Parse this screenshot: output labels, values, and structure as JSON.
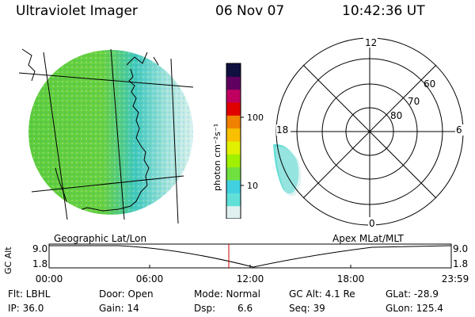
{
  "header": {
    "instrument": "Ultraviolet Imager",
    "date": "06 Nov 07",
    "time": "10:42:36 UT"
  },
  "geo_panel": {
    "title": "Geographic Lat/Lon"
  },
  "apex_panel": {
    "title": "Apex MLat/MLT",
    "lat_labels": [
      "60",
      "70",
      "80"
    ],
    "mlt_labels": [
      "12",
      "18",
      "6",
      "0"
    ]
  },
  "color_scale": {
    "unit_label": "photon cm⁻²s⁻¹",
    "tick_labels": [
      "100",
      "10"
    ],
    "colors": [
      "#e0f0f0",
      "#60e0d8",
      "#40d0e0",
      "#70e040",
      "#a0f000",
      "#e0f000",
      "#f8c000",
      "#f08000",
      "#e00000",
      "#c00060",
      "#600060",
      "#101040"
    ]
  },
  "altitude_plot": {
    "axis_title": "GC Alt",
    "y_max_label": "9.0",
    "y_min_label": "1.8",
    "x_ticks": [
      "00:00",
      "06:00",
      "12:00",
      "18:00",
      "23:59"
    ],
    "current_time_marker": "10:42"
  },
  "status": {
    "filter": "Flt: LBHL",
    "door": "Door: Open",
    "mode": "Mode: Normal",
    "gc_alt": "GC Alt: 4.1 Re",
    "glat": "GLat: -28.9",
    "ip": "IP: 36.0",
    "gain": "Gain: 14",
    "dsp_label": "Dsp:",
    "dsp_value": "6.6",
    "seq": "Seq: 39",
    "glon": "GLon: 125.4"
  },
  "colors": {
    "accent_green": "#60d040",
    "low_cyan": "#c8ecec",
    "marker_red": "#d00000"
  }
}
